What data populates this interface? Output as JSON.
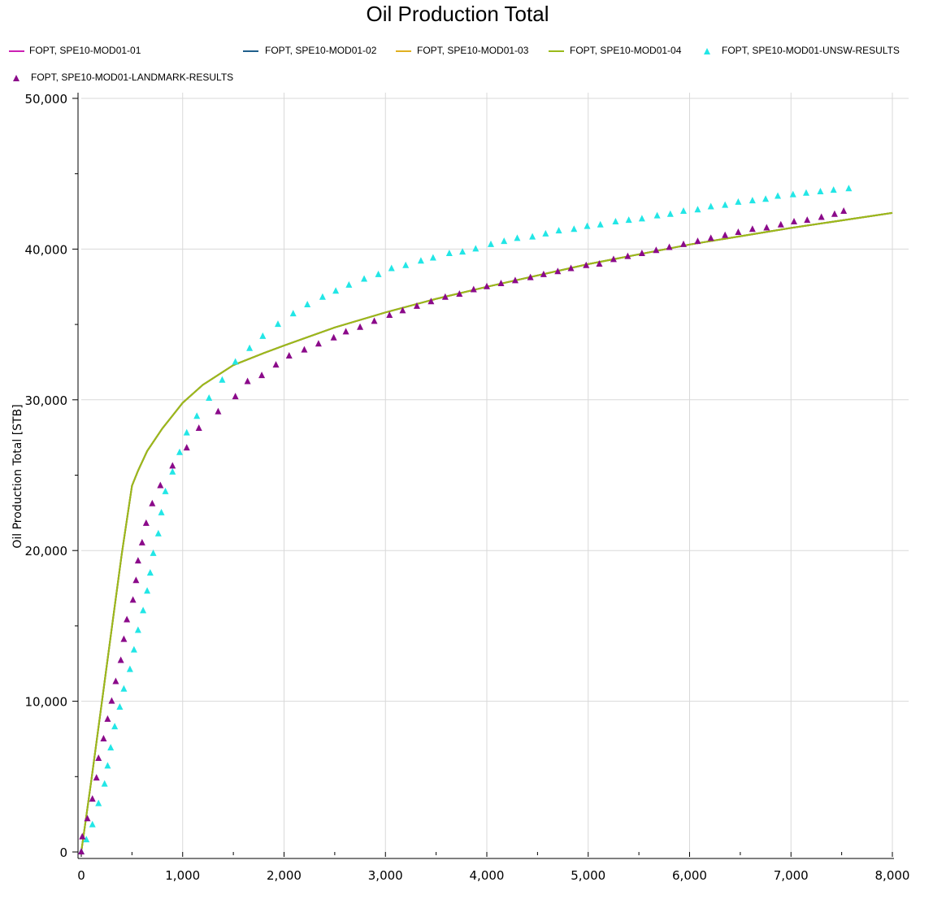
{
  "chart_data": {
    "type": "line",
    "title": "Oil Production Total",
    "xlabel": "",
    "ylabel": "Oil Production Total [STB]",
    "xlim": [
      0,
      8000
    ],
    "ylim": [
      0,
      50000
    ],
    "x_ticks": [
      "0",
      "1,000",
      "2,000",
      "3,000",
      "4,000",
      "5,000",
      "6,000",
      "7,000",
      "8,000"
    ],
    "y_ticks": [
      "0",
      "10,000",
      "20,000",
      "30,000",
      "40,000",
      "50,000"
    ],
    "grid": true,
    "legend_position": "top",
    "series": [
      {
        "name": "FOPT, SPE10-MOD01-01",
        "style": "line",
        "color": "#cc1fb4",
        "x": [
          0,
          100,
          200,
          300,
          400,
          500,
          560,
          650,
          800,
          1000,
          1200,
          1500,
          1800,
          2000,
          2500,
          3000,
          3500,
          4000,
          5000,
          6000,
          7000,
          8000
        ],
        "y": [
          0,
          4800,
          9800,
          14800,
          19800,
          24300,
          25300,
          26600,
          28100,
          29800,
          31000,
          32300,
          33100,
          33600,
          34800,
          35800,
          36700,
          37500,
          39000,
          40300,
          41400,
          42400
        ]
      },
      {
        "name": "FOPT, SPE10-MOD01-02",
        "style": "line",
        "color": "#1f5f8b",
        "x": [
          0,
          100,
          200,
          300,
          400,
          500,
          560,
          650,
          800,
          1000,
          1200,
          1500,
          1800,
          2000,
          2500,
          3000,
          3500,
          4000,
          5000,
          6000,
          7000,
          8000
        ],
        "y": [
          0,
          4800,
          9800,
          14800,
          19800,
          24300,
          25300,
          26600,
          28100,
          29800,
          31000,
          32300,
          33100,
          33600,
          34800,
          35800,
          36700,
          37500,
          39000,
          40300,
          41400,
          42400
        ]
      },
      {
        "name": "FOPT, SPE10-MOD01-03",
        "style": "line",
        "color": "#e0b020",
        "x": [
          0,
          100,
          200,
          300,
          400,
          500,
          560,
          650,
          800,
          1000,
          1200,
          1500,
          1800,
          2000,
          2500,
          3000,
          3500,
          4000,
          5000,
          6000,
          7000,
          8000
        ],
        "y": [
          0,
          4800,
          9800,
          14800,
          19800,
          24300,
          25300,
          26600,
          28100,
          29800,
          31000,
          32300,
          33100,
          33600,
          34800,
          35800,
          36700,
          37500,
          39000,
          40300,
          41400,
          42400
        ]
      },
      {
        "name": "FOPT, SPE10-MOD01-04",
        "style": "line",
        "color": "#9aba1a",
        "x": [
          0,
          100,
          200,
          300,
          400,
          500,
          560,
          650,
          800,
          1000,
          1200,
          1500,
          1800,
          2000,
          2500,
          3000,
          3500,
          4000,
          5000,
          6000,
          7000,
          8000
        ],
        "y": [
          0,
          4800,
          9800,
          14800,
          19800,
          24300,
          25300,
          26600,
          28100,
          29800,
          31000,
          32300,
          33100,
          33600,
          34800,
          35800,
          36700,
          37500,
          39000,
          40300,
          41400,
          42400
        ]
      },
      {
        "name": "FOPT, SPE10-MOD01-UNSW-RESULTS",
        "style": "marker",
        "color": "#22e6e6",
        "x": [
          0,
          50,
          110,
          170,
          230,
          260,
          290,
          330,
          380,
          420,
          480,
          520,
          560,
          610,
          650,
          680,
          710,
          760,
          790,
          830,
          900,
          970,
          1040,
          1140,
          1260,
          1390,
          1520,
          1660,
          1790,
          1940,
          2090,
          2230,
          2380,
          2510,
          2640,
          2790,
          2930,
          3060,
          3200,
          3350,
          3470,
          3630,
          3760,
          3890,
          4040,
          4170,
          4300,
          4450,
          4580,
          4710,
          4860,
          4990,
          5120,
          5270,
          5400,
          5530,
          5680,
          5810,
          5940,
          6080,
          6210,
          6350,
          6480,
          6620,
          6750,
          6870,
          7020,
          7150,
          7290,
          7420,
          7570
        ],
        "y": [
          0,
          800,
          1800,
          3200,
          4500,
          5700,
          6900,
          8300,
          9600,
          10800,
          12100,
          13400,
          14700,
          16000,
          17300,
          18500,
          19800,
          21100,
          22500,
          23900,
          25200,
          26500,
          27800,
          28900,
          30100,
          31300,
          32500,
          33400,
          34200,
          35000,
          35700,
          36300,
          36800,
          37200,
          37600,
          38000,
          38300,
          38700,
          38900,
          39200,
          39400,
          39700,
          39800,
          40000,
          40300,
          40500,
          40700,
          40800,
          41000,
          41200,
          41300,
          41500,
          41600,
          41800,
          41900,
          42000,
          42200,
          42300,
          42500,
          42600,
          42800,
          42900,
          43100,
          43200,
          43300,
          43500,
          43600,
          43700,
          43800,
          43900,
          44000
        ]
      },
      {
        "name": "FOPT, SPE10-MOD01-LANDMARK-RESULTS",
        "style": "marker",
        "color": "#8b0a8a",
        "x": [
          0,
          10,
          60,
          110,
          150,
          170,
          220,
          260,
          300,
          340,
          390,
          420,
          450,
          510,
          540,
          560,
          600,
          640,
          700,
          780,
          900,
          1040,
          1160,
          1350,
          1520,
          1640,
          1780,
          1920,
          2050,
          2200,
          2340,
          2490,
          2610,
          2750,
          2890,
          3040,
          3170,
          3310,
          3450,
          3590,
          3730,
          3870,
          4000,
          4140,
          4280,
          4430,
          4560,
          4700,
          4830,
          4980,
          5110,
          5250,
          5390,
          5530,
          5670,
          5800,
          5940,
          6080,
          6210,
          6350,
          6480,
          6620,
          6760,
          6900,
          7030,
          7160,
          7300,
          7430,
          7520
        ],
        "y": [
          0,
          1000,
          2200,
          3500,
          4900,
          6200,
          7500,
          8800,
          10000,
          11300,
          12700,
          14100,
          15400,
          16700,
          18000,
          19300,
          20500,
          21800,
          23100,
          24300,
          25600,
          26800,
          28100,
          29200,
          30200,
          31200,
          31600,
          32300,
          32900,
          33300,
          33700,
          34100,
          34500,
          34800,
          35200,
          35600,
          35900,
          36200,
          36500,
          36800,
          37000,
          37300,
          37500,
          37700,
          37900,
          38100,
          38300,
          38500,
          38700,
          38900,
          39000,
          39300,
          39500,
          39700,
          39900,
          40100,
          40300,
          40500,
          40700,
          40900,
          41100,
          41300,
          41400,
          41600,
          41800,
          41900,
          42100,
          42300,
          42500
        ]
      }
    ]
  }
}
